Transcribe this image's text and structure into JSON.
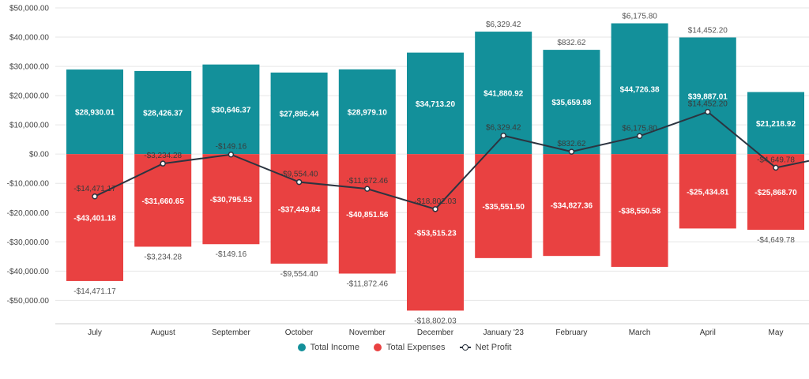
{
  "colors": {
    "income": "#13909a",
    "expenses": "#e94141",
    "net": "#2c3440",
    "grid": "#e6e6e6",
    "axis_text": "#444444",
    "label_on_bar": "#ffffff",
    "label_off_bar": "#555555"
  },
  "chart_data": {
    "type": "bar",
    "categories": [
      "July",
      "August",
      "September",
      "October",
      "November",
      "December",
      "January '23",
      "February",
      "March",
      "April",
      "May"
    ],
    "series": [
      {
        "name": "Total Income",
        "type": "bar",
        "values": [
          28930.01,
          28426.37,
          30646.37,
          27895.44,
          28979.1,
          34713.2,
          41880.92,
          35659.98,
          44726.38,
          39887.01,
          21218.92
        ],
        "labels": [
          "$28,930.01",
          "$28,426.37",
          "$30,646.37",
          "$27,895.44",
          "$28,979.10",
          "$34,713.20",
          "$41,880.92",
          "$35,659.98",
          "$44,726.38",
          "$39,887.01",
          "$21,218.92"
        ]
      },
      {
        "name": "Total Expenses",
        "type": "bar",
        "values": [
          -43401.18,
          -31660.65,
          -30795.53,
          -37449.84,
          -40851.56,
          -53515.23,
          -35551.5,
          -34827.36,
          -38550.58,
          -25434.81,
          -25868.7
        ],
        "labels": [
          "-$43,401.18",
          "-$31,660.65",
          "-$30,795.53",
          "-$37,449.84",
          "-$40,851.56",
          "-$53,515.23",
          "-$35,551.50",
          "-$34,827.36",
          "-$38,550.58",
          "-$25,434.81",
          "-$25,868.70"
        ]
      },
      {
        "name": "Net Profit",
        "type": "line",
        "values": [
          -14471.17,
          -3234.28,
          -149.16,
          -9554.4,
          -11872.46,
          -18802.03,
          6329.42,
          832.62,
          6175.8,
          14452.2,
          -4649.78
        ],
        "labels": [
          "-$14,471.17",
          "-$3,234.28",
          "-$149.16",
          "-$9,554.40",
          "-$11,872.46",
          "-$18,802.03",
          "$6,329.42",
          "$832.62",
          "$6,175.80",
          "$14,452.20",
          "-$4,649.78"
        ]
      }
    ],
    "line_extends_past_last": -2300,
    "ylim": [
      -58000,
      50000
    ],
    "yticks": [
      50000,
      40000,
      30000,
      20000,
      10000,
      0,
      -10000,
      -20000,
      -30000,
      -40000,
      -50000
    ],
    "ytick_labels": [
      "$50,000.00",
      "$40,000.00",
      "$30,000.00",
      "$20,000.00",
      "$10,000.00",
      "$0.00",
      "-$10,000.00",
      "-$20,000.00",
      "-$30,000.00",
      "-$40,000.00",
      "-$50,000.00"
    ],
    "grid": true,
    "legend_position": "bottom"
  },
  "legend": {
    "income": "Total Income",
    "expenses": "Total Expenses",
    "net": "Net Profit"
  }
}
